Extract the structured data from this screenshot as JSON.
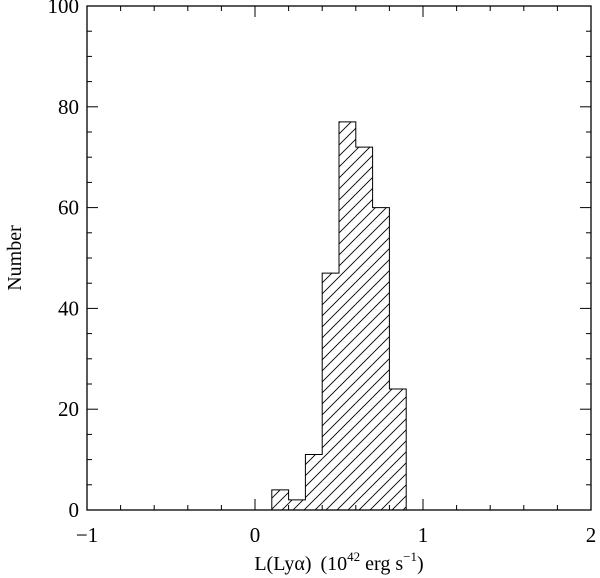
{
  "chart_data": {
    "type": "bar",
    "title": "",
    "xlabel": {
      "main": "L(Lyα)",
      "paren_open": "(10",
      "exponent": "42",
      "unit": " erg s",
      "unit_exponent": "−1",
      "paren_close": ")"
    },
    "ylabel": "Number",
    "xlim": [
      -1,
      2
    ],
    "ylim": [
      0,
      100
    ],
    "xticks": [
      -1,
      0,
      1,
      2
    ],
    "xtick_labels": [
      "−1",
      "0",
      "1",
      "2"
    ],
    "yticks": [
      0,
      20,
      40,
      60,
      80,
      100
    ],
    "ytick_labels": [
      "0",
      "20",
      "40",
      "60",
      "80",
      "100"
    ],
    "bin_width": 0.1,
    "bins": [
      {
        "x0": 0.1,
        "x1": 0.2,
        "count": 4
      },
      {
        "x0": 0.2,
        "x1": 0.3,
        "count": 2
      },
      {
        "x0": 0.3,
        "x1": 0.4,
        "count": 11
      },
      {
        "x0": 0.4,
        "x1": 0.5,
        "count": 47
      },
      {
        "x0": 0.5,
        "x1": 0.6,
        "count": 77
      },
      {
        "x0": 0.6,
        "x1": 0.7,
        "count": 72
      },
      {
        "x0": 0.7,
        "x1": 0.8,
        "count": 60
      },
      {
        "x0": 0.8,
        "x1": 0.9,
        "count": 24
      }
    ],
    "fill": "diagonal-hatch",
    "grid": false,
    "colors": {
      "line": "#000000",
      "background": "#ffffff"
    }
  }
}
